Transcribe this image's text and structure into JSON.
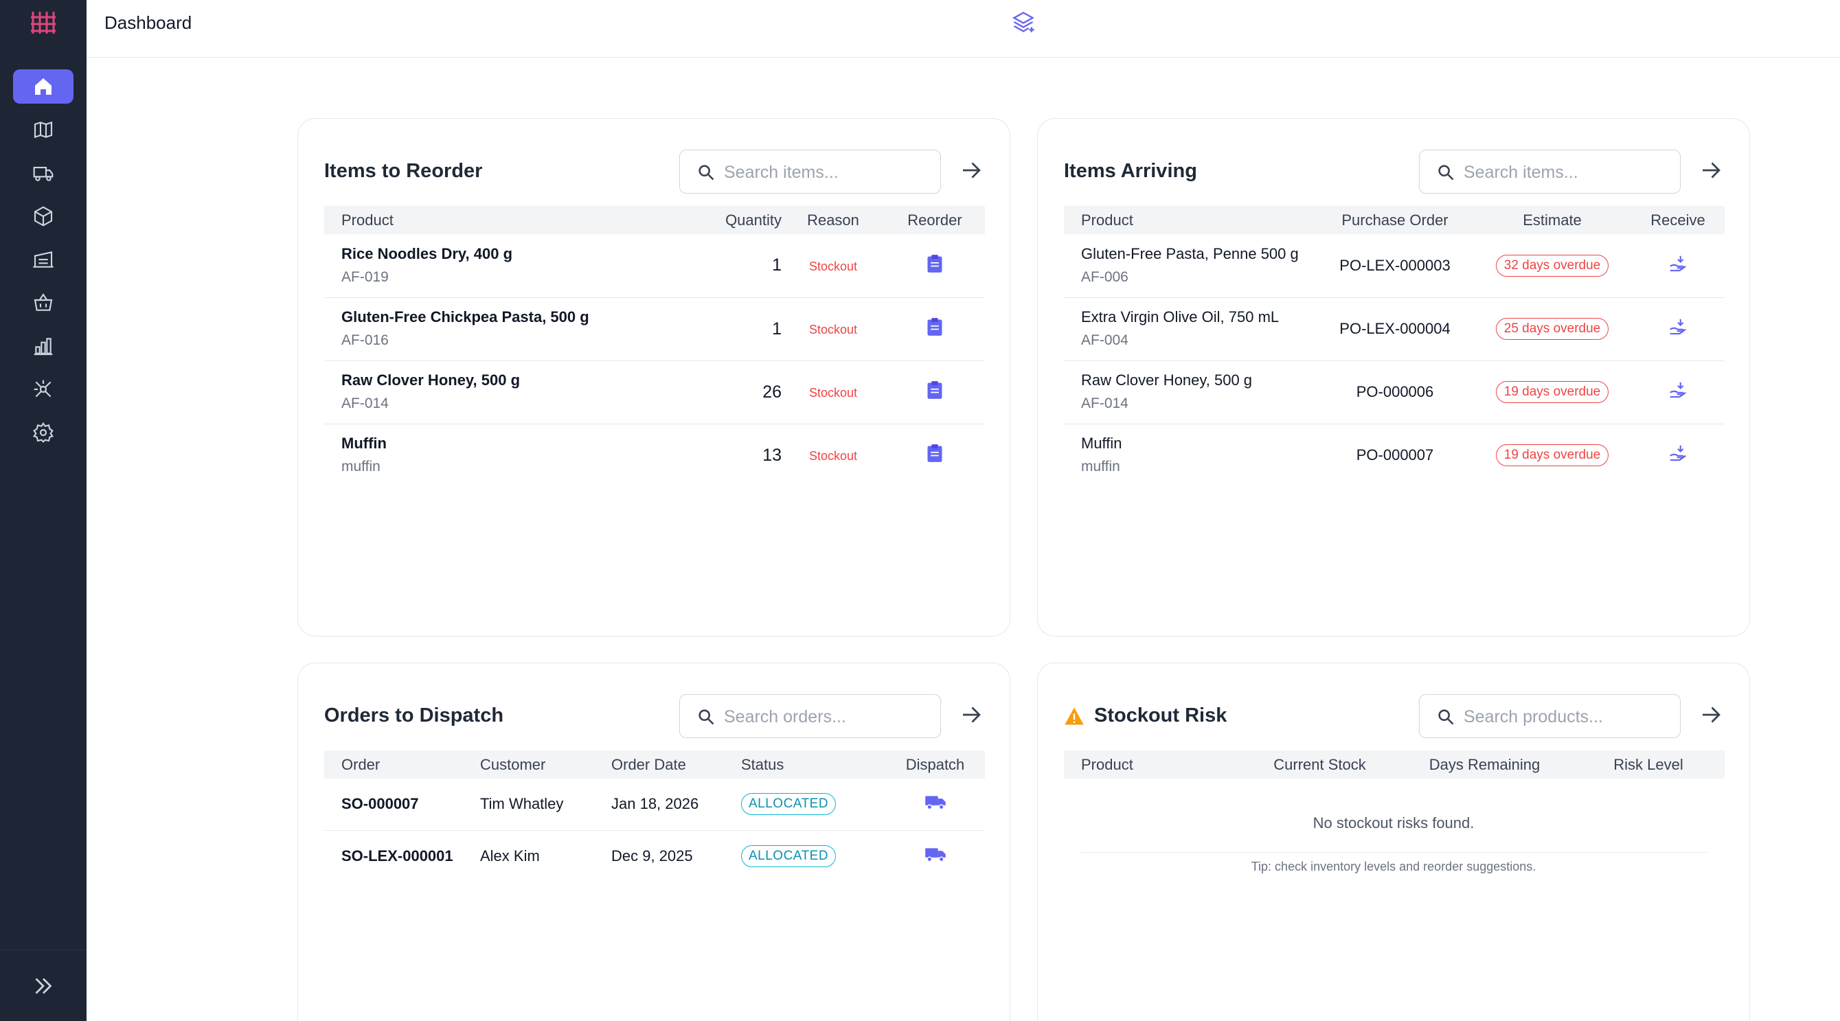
{
  "header": {
    "title": "Dashboard"
  },
  "sidebar": {
    "items": [
      {
        "icon": "home-icon",
        "active": true
      },
      {
        "icon": "map-icon",
        "active": false
      },
      {
        "icon": "truck-icon",
        "active": false
      },
      {
        "icon": "box-icon",
        "active": false
      },
      {
        "icon": "warehouse-icon",
        "active": false
      },
      {
        "icon": "basket-icon",
        "active": false
      },
      {
        "icon": "bar-chart-icon",
        "active": false
      },
      {
        "icon": "integrations-icon",
        "active": false
      },
      {
        "icon": "gear-icon",
        "active": false
      }
    ]
  },
  "reorder": {
    "title": "Items to Reorder",
    "search_placeholder": "Search items...",
    "columns": [
      "Product",
      "Quantity",
      "Reason",
      "Reorder"
    ],
    "rows": [
      {
        "name": "Rice Noodles Dry, 400 g",
        "sku": "AF-019",
        "quantity": "1",
        "reason": "Stockout"
      },
      {
        "name": "Gluten-Free Chickpea Pasta, 500 g",
        "sku": "AF-016",
        "quantity": "1",
        "reason": "Stockout"
      },
      {
        "name": "Raw Clover Honey, 500 g",
        "sku": "AF-014",
        "quantity": "26",
        "reason": "Stockout"
      },
      {
        "name": "Muffin",
        "sku": "muffin",
        "quantity": "13",
        "reason": "Stockout"
      }
    ]
  },
  "arriving": {
    "title": "Items Arriving",
    "search_placeholder": "Search items...",
    "columns": [
      "Product",
      "Purchase Order",
      "Estimate",
      "Receive"
    ],
    "rows": [
      {
        "name": "Gluten-Free Pasta, Penne 500 g",
        "sku": "AF-006",
        "po": "PO-LEX-000003",
        "estimate": "32 days overdue"
      },
      {
        "name": "Extra Virgin Olive Oil, 750 mL",
        "sku": "AF-004",
        "po": "PO-LEX-000004",
        "estimate": "25 days overdue"
      },
      {
        "name": "Raw Clover Honey, 500 g",
        "sku": "AF-014",
        "po": "PO-000006",
        "estimate": "19 days overdue"
      },
      {
        "name": "Muffin",
        "sku": "muffin",
        "po": "PO-000007",
        "estimate": "19 days overdue"
      }
    ]
  },
  "dispatch": {
    "title": "Orders to Dispatch",
    "search_placeholder": "Search orders...",
    "columns": [
      "Order",
      "Customer",
      "Order Date",
      "Status",
      "Dispatch"
    ],
    "rows": [
      {
        "order": "SO-000007",
        "customer": "Tim Whatley",
        "date": "Jan 18, 2026",
        "status": "ALLOCATED"
      },
      {
        "order": "SO-LEX-000001",
        "customer": "Alex Kim",
        "date": "Dec 9, 2025",
        "status": "ALLOCATED"
      }
    ]
  },
  "risk": {
    "title": "Stockout Risk",
    "search_placeholder": "Search products...",
    "columns": [
      "Product",
      "Current Stock",
      "Days Remaining",
      "Risk Level"
    ],
    "empty": "No stockout risks found.",
    "tip": "Tip: check inventory levels and reorder suggestions."
  },
  "colors": {
    "sidebar": "#1e2535",
    "accent": "#6366f1",
    "danger": "#ef4444",
    "info": "#06b6d4",
    "warning": "#f59e0b"
  }
}
